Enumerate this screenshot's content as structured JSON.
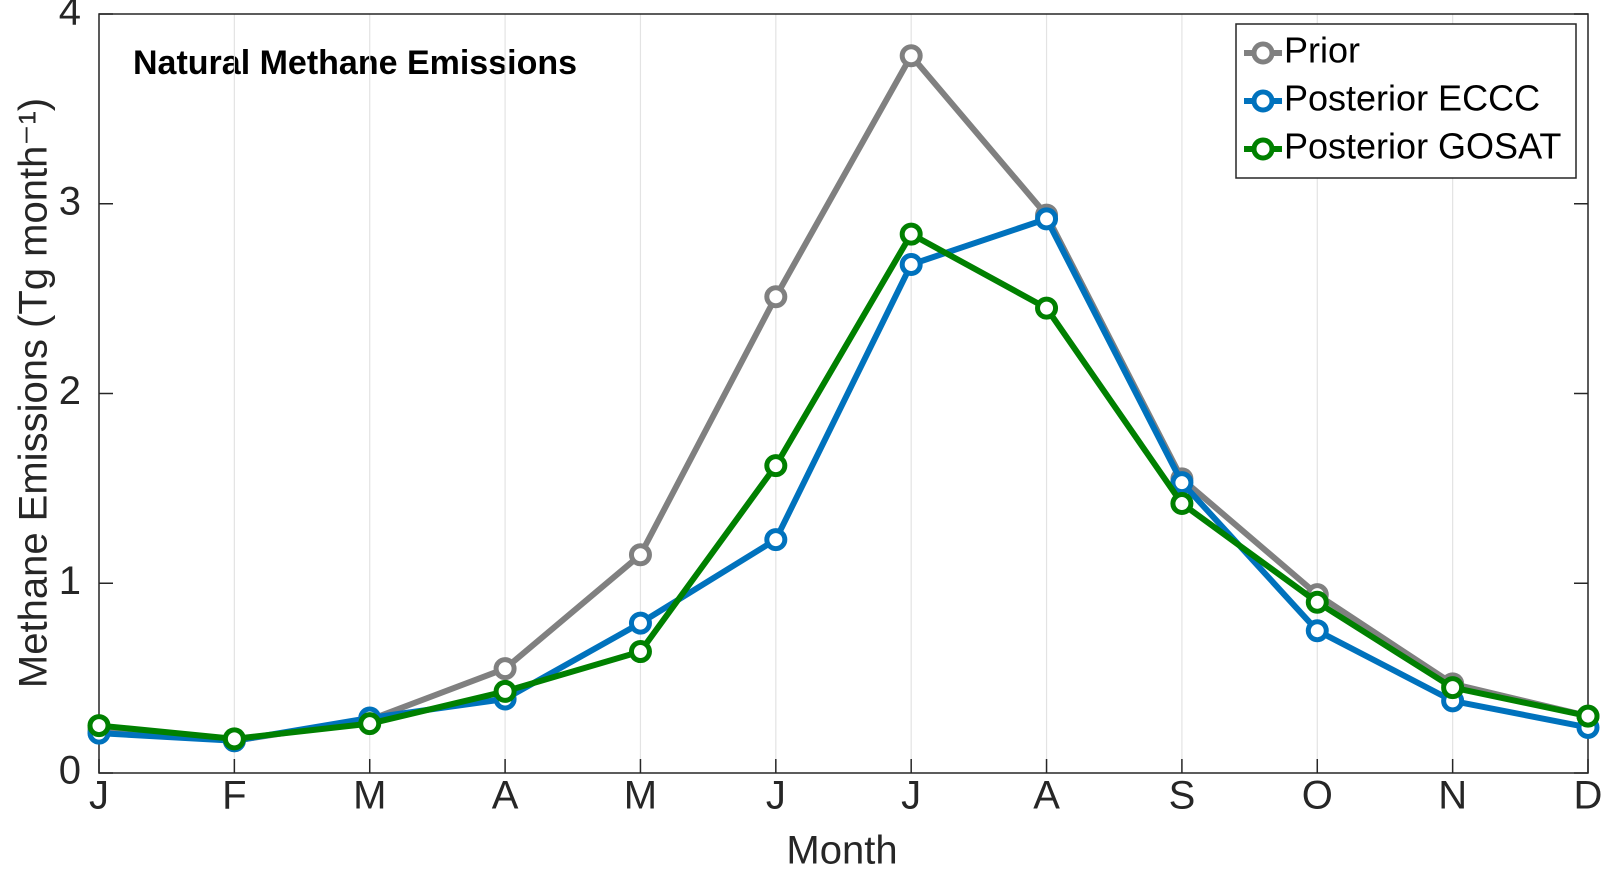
{
  "chart_data": {
    "type": "line",
    "title": "Natural Methane Emissions",
    "x_label": "Month",
    "y_label": "Methane Emissions (Tg month⁻¹)",
    "categories": [
      "J",
      "F",
      "M",
      "A",
      "M",
      "J",
      "J",
      "A",
      "S",
      "O",
      "N",
      "D"
    ],
    "series": [
      {
        "name": "Prior",
        "color": "#808080",
        "values": [
          0.23,
          0.17,
          0.28,
          0.55,
          1.15,
          2.51,
          3.78,
          2.94,
          1.55,
          0.94,
          0.47,
          0.3
        ]
      },
      {
        "name": "Posterior ECCC",
        "color": "#0072BD",
        "values": [
          0.21,
          0.17,
          0.29,
          0.39,
          0.79,
          1.23,
          2.68,
          2.92,
          1.53,
          0.75,
          0.38,
          0.24
        ]
      },
      {
        "name": "Posterior GOSAT",
        "color": "#008000",
        "values": [
          0.25,
          0.18,
          0.26,
          0.43,
          0.64,
          1.62,
          2.84,
          2.45,
          1.42,
          0.9,
          0.45,
          0.3
        ]
      }
    ],
    "ylim": [
      0,
      4
    ],
    "yticks": [
      0,
      1,
      2,
      3,
      4
    ],
    "grid": "x",
    "legend": "upper-right"
  }
}
